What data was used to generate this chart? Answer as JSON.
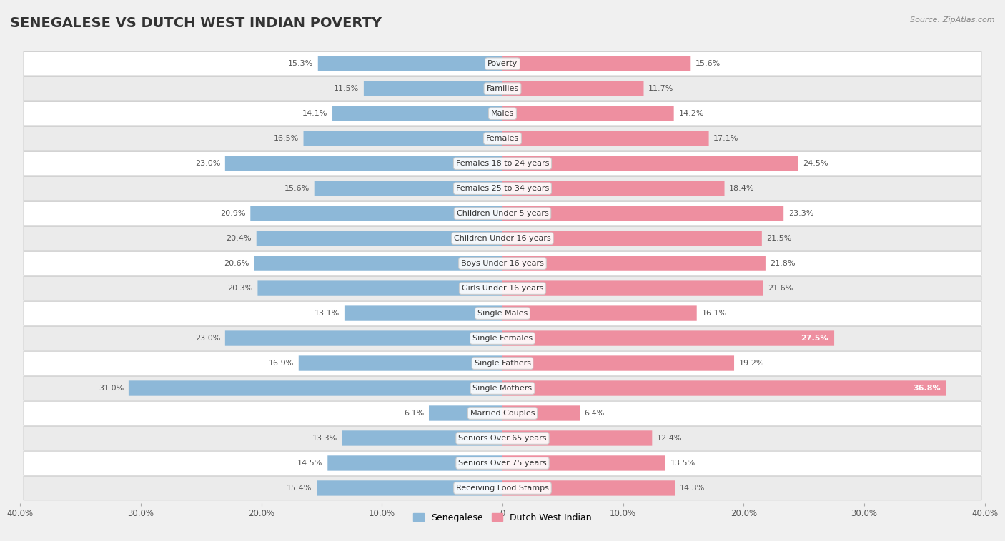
{
  "title": "SENEGALESE VS DUTCH WEST INDIAN POVERTY",
  "source": "Source: ZipAtlas.com",
  "categories": [
    "Poverty",
    "Families",
    "Males",
    "Females",
    "Females 18 to 24 years",
    "Females 25 to 34 years",
    "Children Under 5 years",
    "Children Under 16 years",
    "Boys Under 16 years",
    "Girls Under 16 years",
    "Single Males",
    "Single Females",
    "Single Fathers",
    "Single Mothers",
    "Married Couples",
    "Seniors Over 65 years",
    "Seniors Over 75 years",
    "Receiving Food Stamps"
  ],
  "senegalese": [
    15.3,
    11.5,
    14.1,
    16.5,
    23.0,
    15.6,
    20.9,
    20.4,
    20.6,
    20.3,
    13.1,
    23.0,
    16.9,
    31.0,
    6.1,
    13.3,
    14.5,
    15.4
  ],
  "dutch_west_indian": [
    15.6,
    11.7,
    14.2,
    17.1,
    24.5,
    18.4,
    23.3,
    21.5,
    21.8,
    21.6,
    16.1,
    27.5,
    19.2,
    36.8,
    6.4,
    12.4,
    13.5,
    14.3
  ],
  "senegalese_color": "#8db8d8",
  "dutch_west_indian_color": "#ee8fa0",
  "row_color_even": "#f0f0f0",
  "row_color_odd": "#fafafa",
  "background_color": "#f0f0f0",
  "xlim": 40.0,
  "bar_height": 0.6,
  "title_fontsize": 14,
  "label_fontsize": 8,
  "value_fontsize": 8,
  "legend_label_senegalese": "Senegalese",
  "legend_label_dutch": "Dutch West Indian",
  "xtick_positions": [
    -40,
    -30,
    -20,
    -10,
    0,
    10,
    20,
    30,
    40
  ],
  "xtick_labels": [
    "40.0%",
    "30.0%",
    "20.0%",
    "10.0%",
    "0",
    "10.0%",
    "20.0%",
    "30.0%",
    "40.0%"
  ]
}
